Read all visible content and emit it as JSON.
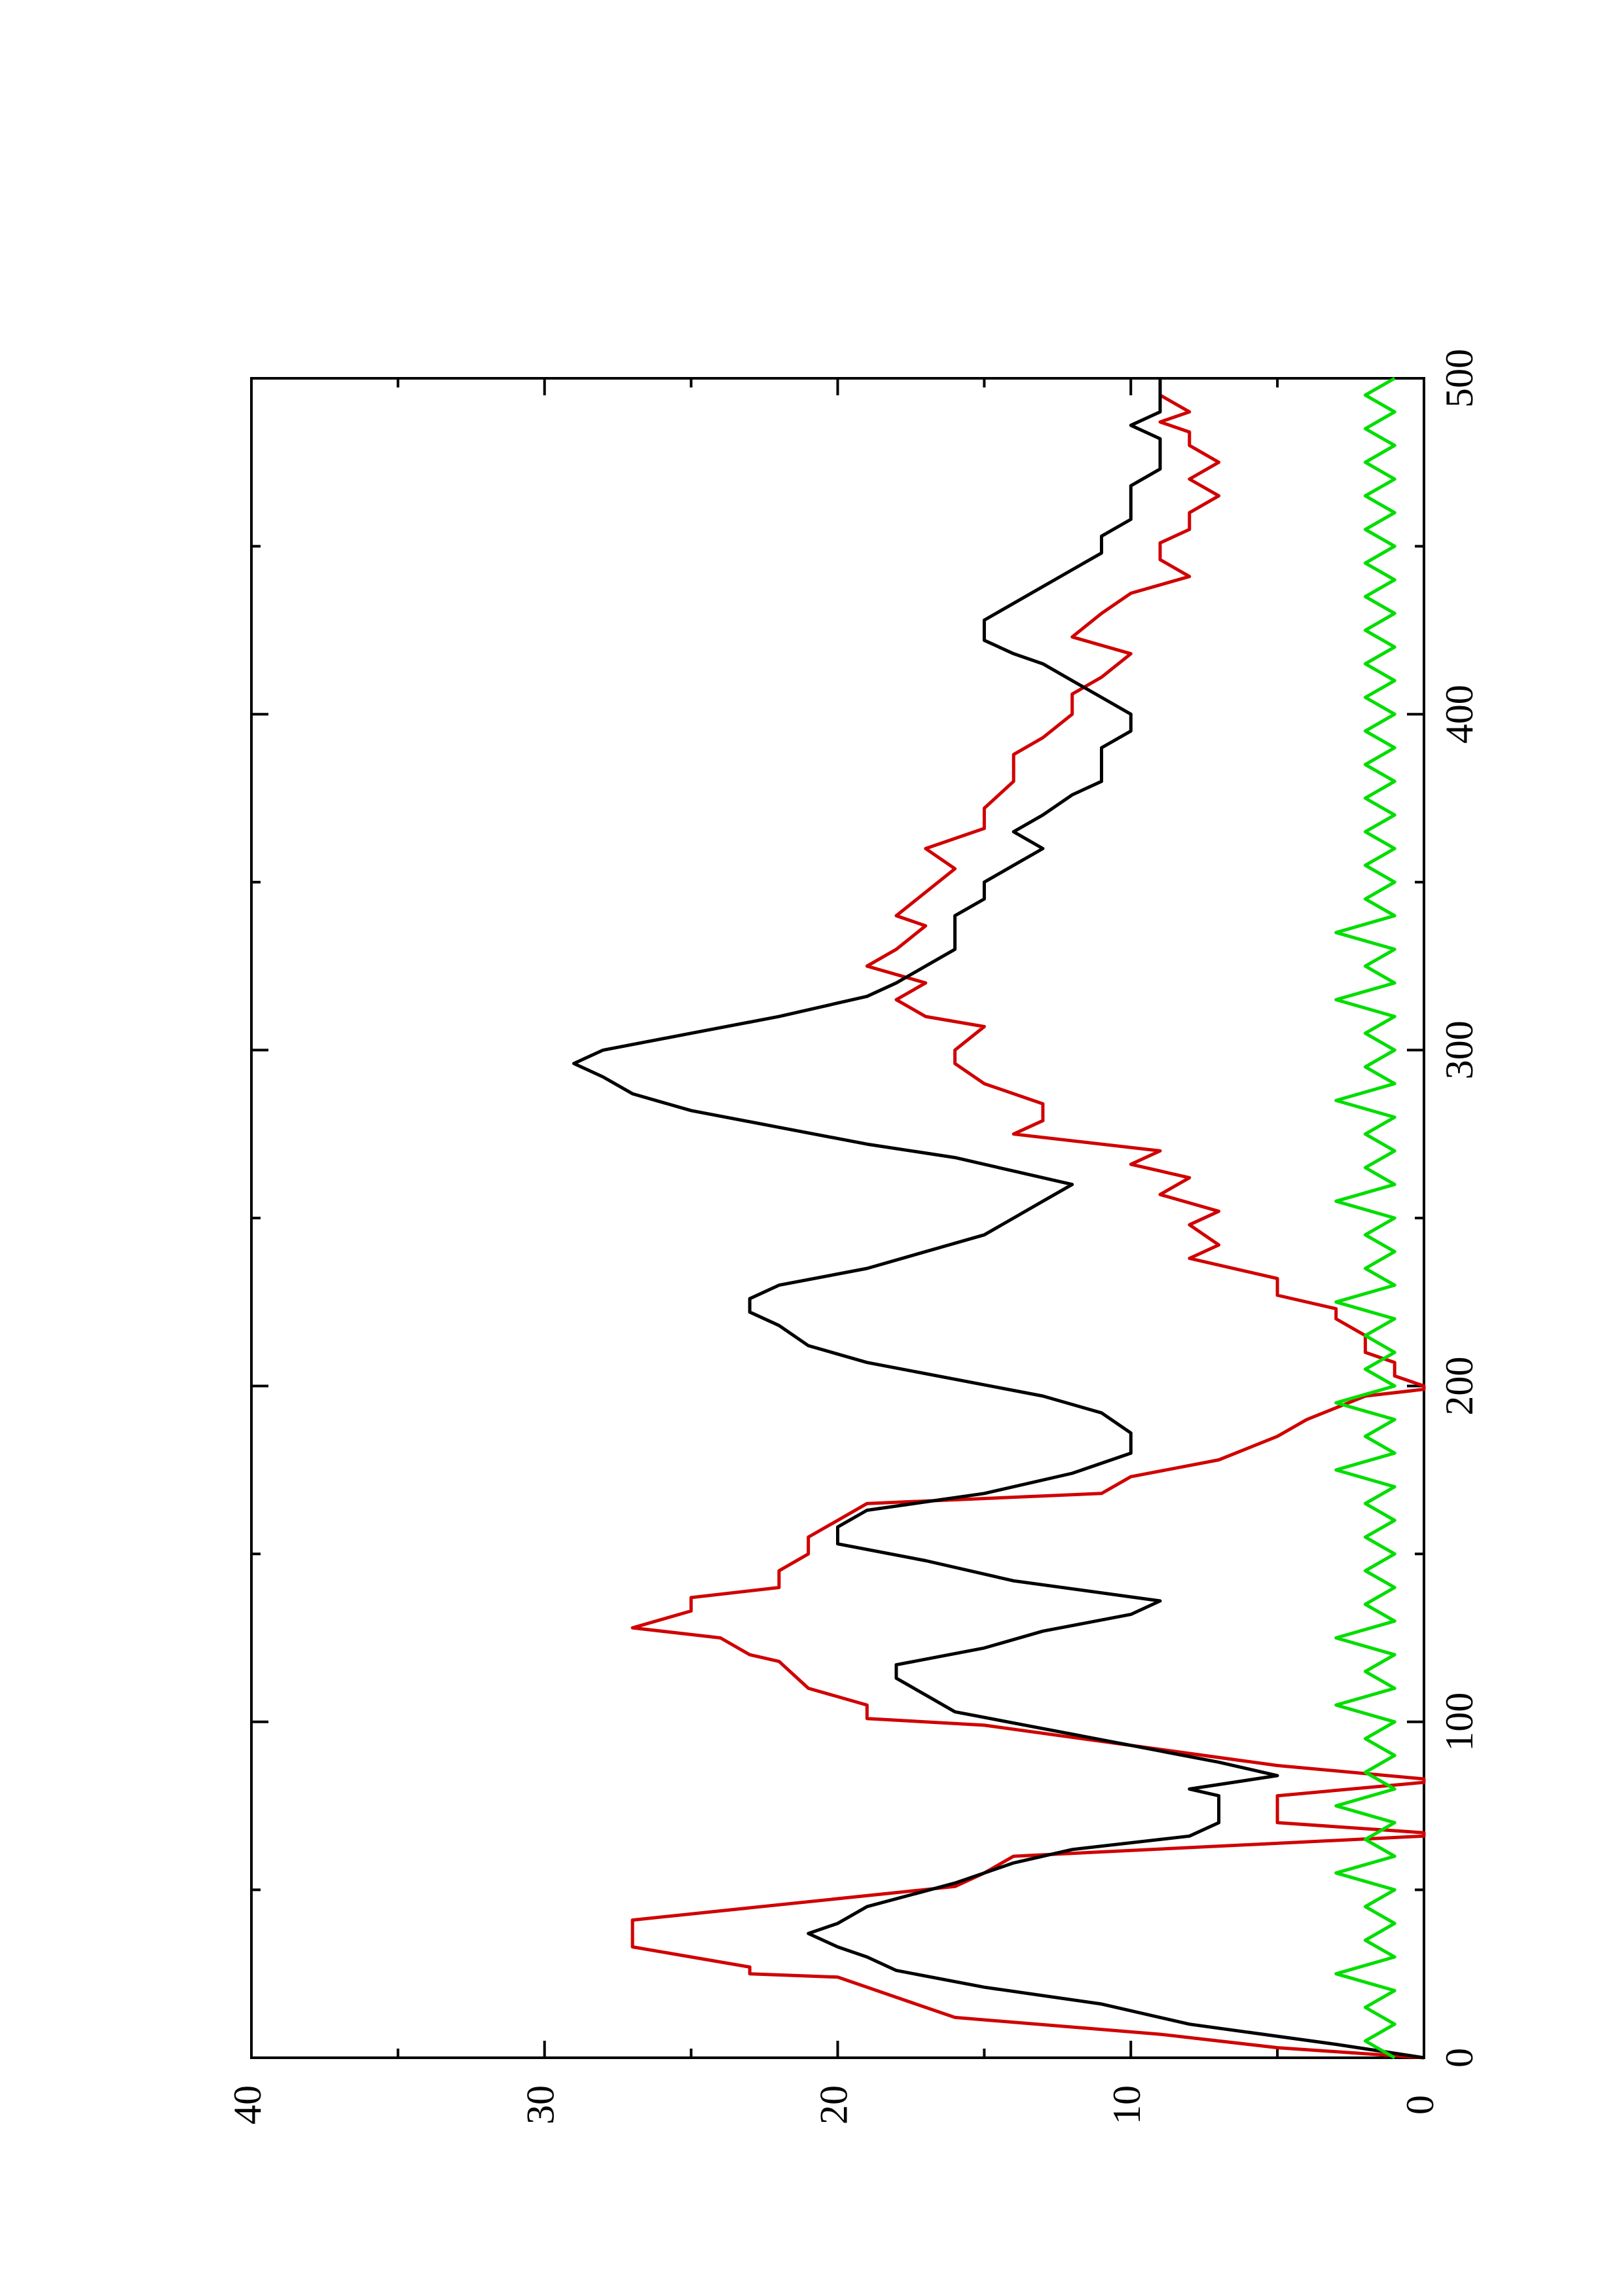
{
  "chart_data": {
    "type": "line",
    "orientation": "rotated-90-ccw",
    "title": "",
    "xlabel": "",
    "ylabel": "",
    "xlim": [
      0,
      500
    ],
    "ylim": [
      0,
      40
    ],
    "x_ticks": [
      0,
      100,
      200,
      300,
      400,
      500
    ],
    "y_ticks": [
      0,
      10,
      20,
      30,
      40
    ],
    "x_minor_ticks": [
      50,
      150,
      250,
      350,
      450
    ],
    "y_minor_ticks": [
      5,
      15,
      25,
      35
    ],
    "grid": false,
    "legend": "none",
    "series": [
      {
        "color": "#d00000",
        "style": "stepped-line",
        "points": [
          [
            0,
            0
          ],
          [
            3,
            5
          ],
          [
            7,
            9
          ],
          [
            12,
            16
          ],
          [
            24,
            20
          ],
          [
            25,
            23
          ],
          [
            27,
            23
          ],
          [
            33,
            27
          ],
          [
            41,
            27
          ],
          [
            51,
            16
          ],
          [
            55,
            15
          ],
          [
            60,
            14
          ],
          [
            66,
            0
          ],
          [
            67,
            0
          ],
          [
            70,
            5
          ],
          [
            78,
            5
          ],
          [
            82,
            0
          ],
          [
            83,
            0
          ],
          [
            87,
            5
          ],
          [
            99,
            15
          ],
          [
            101,
            19
          ],
          [
            105,
            19
          ],
          [
            110,
            21
          ],
          [
            118,
            22
          ],
          [
            120,
            23
          ],
          [
            125,
            24
          ],
          [
            128,
            27
          ],
          [
            133,
            25
          ],
          [
            137,
            25
          ],
          [
            140,
            22
          ],
          [
            145,
            22
          ],
          [
            150,
            21
          ],
          [
            155,
            21
          ],
          [
            160,
            20
          ],
          [
            165,
            19
          ],
          [
            168,
            11
          ],
          [
            173,
            10
          ],
          [
            178,
            7
          ],
          [
            185,
            5
          ],
          [
            190,
            4
          ],
          [
            197,
            2
          ],
          [
            199,
            0
          ],
          [
            200,
            0
          ],
          [
            203,
            1
          ],
          [
            207,
            1
          ],
          [
            210,
            2
          ],
          [
            215,
            2
          ],
          [
            220,
            3
          ],
          [
            223,
            3
          ],
          [
            227,
            5
          ],
          [
            232,
            5
          ],
          [
            238,
            8
          ],
          [
            242,
            7
          ],
          [
            248,
            8
          ],
          [
            252,
            7
          ],
          [
            257,
            9
          ],
          [
            262,
            8
          ],
          [
            266,
            10
          ],
          [
            270,
            9
          ],
          [
            275,
            14
          ],
          [
            279,
            13
          ],
          [
            284,
            13
          ],
          [
            290,
            15
          ],
          [
            296,
            16
          ],
          [
            300,
            16
          ],
          [
            307,
            15
          ],
          [
            310,
            17
          ],
          [
            315,
            18
          ],
          [
            320,
            17
          ],
          [
            325,
            19
          ],
          [
            330,
            18
          ],
          [
            337,
            17
          ],
          [
            340,
            18
          ],
          [
            347,
            17
          ],
          [
            354,
            16
          ],
          [
            360,
            17
          ],
          [
            366,
            15
          ],
          [
            372,
            15
          ],
          [
            380,
            14
          ],
          [
            388,
            14
          ],
          [
            393,
            13
          ],
          [
            400,
            12
          ],
          [
            406,
            12
          ],
          [
            411,
            11
          ],
          [
            418,
            10
          ],
          [
            423,
            12
          ],
          [
            430,
            11
          ],
          [
            436,
            10
          ],
          [
            441,
            8
          ],
          [
            446,
            9
          ],
          [
            451,
            9
          ],
          [
            455,
            8
          ],
          [
            460,
            8
          ],
          [
            465,
            7
          ],
          [
            470,
            8
          ],
          [
            475,
            7
          ],
          [
            480,
            8
          ],
          [
            484,
            8
          ],
          [
            487,
            9
          ],
          [
            490,
            8
          ],
          [
            495,
            9
          ],
          [
            500,
            9
          ]
        ]
      },
      {
        "color": "#000000",
        "style": "line",
        "points": [
          [
            0,
            0
          ],
          [
            4,
            3
          ],
          [
            10,
            8
          ],
          [
            16,
            11
          ],
          [
            21,
            15
          ],
          [
            26,
            18
          ],
          [
            30,
            19
          ],
          [
            33,
            20
          ],
          [
            37,
            21
          ],
          [
            40,
            20
          ],
          [
            45,
            19
          ],
          [
            52,
            16
          ],
          [
            58,
            14
          ],
          [
            62,
            12
          ],
          [
            66,
            8
          ],
          [
            70,
            7
          ],
          [
            74,
            7
          ],
          [
            78,
            7
          ],
          [
            80,
            8
          ],
          [
            84,
            5
          ],
          [
            88,
            7
          ],
          [
            93,
            10
          ],
          [
            98,
            13
          ],
          [
            103,
            16
          ],
          [
            108,
            17
          ],
          [
            113,
            18
          ],
          [
            117,
            18
          ],
          [
            122,
            15
          ],
          [
            127,
            13
          ],
          [
            132,
            10
          ],
          [
            136,
            9
          ],
          [
            142,
            14
          ],
          [
            148,
            17
          ],
          [
            153,
            20
          ],
          [
            158,
            20
          ],
          [
            163,
            19
          ],
          [
            168,
            15
          ],
          [
            174,
            12
          ],
          [
            180,
            10
          ],
          [
            186,
            10
          ],
          [
            192,
            11
          ],
          [
            197,
            13
          ],
          [
            202,
            16
          ],
          [
            207,
            19
          ],
          [
            212,
            21
          ],
          [
            218,
            22
          ],
          [
            222,
            23
          ],
          [
            226,
            23
          ],
          [
            230,
            22
          ],
          [
            235,
            19
          ],
          [
            240,
            17
          ],
          [
            245,
            15
          ],
          [
            250,
            14
          ],
          [
            255,
            13
          ],
          [
            260,
            12
          ],
          [
            264,
            14
          ],
          [
            268,
            16
          ],
          [
            272,
            19
          ],
          [
            277,
            22
          ],
          [
            282,
            25
          ],
          [
            287,
            27
          ],
          [
            292,
            28
          ],
          [
            296,
            29
          ],
          [
            300,
            28
          ],
          [
            305,
            25
          ],
          [
            310,
            22
          ],
          [
            316,
            19
          ],
          [
            320,
            18
          ],
          [
            325,
            17
          ],
          [
            330,
            16
          ],
          [
            335,
            16
          ],
          [
            340,
            16
          ],
          [
            345,
            15
          ],
          [
            350,
            15
          ],
          [
            355,
            14
          ],
          [
            360,
            13
          ],
          [
            365,
            14
          ],
          [
            370,
            13
          ],
          [
            376,
            12
          ],
          [
            380,
            11
          ],
          [
            385,
            11
          ],
          [
            390,
            11
          ],
          [
            395,
            10
          ],
          [
            400,
            10
          ],
          [
            405,
            11
          ],
          [
            410,
            12
          ],
          [
            415,
            13
          ],
          [
            418,
            14
          ],
          [
            422,
            15
          ],
          [
            428,
            15
          ],
          [
            433,
            14
          ],
          [
            438,
            13
          ],
          [
            443,
            12
          ],
          [
            448,
            11
          ],
          [
            453,
            11
          ],
          [
            458,
            10
          ],
          [
            463,
            10
          ],
          [
            468,
            10
          ],
          [
            473,
            9
          ],
          [
            478,
            9
          ],
          [
            482,
            9
          ],
          [
            486,
            10
          ],
          [
            490,
            9
          ],
          [
            495,
            9
          ],
          [
            500,
            9
          ]
        ]
      },
      {
        "color": "#00dd00",
        "style": "line",
        "points": [
          [
            0,
            1
          ],
          [
            5,
            2
          ],
          [
            10,
            1
          ],
          [
            15,
            2
          ],
          [
            20,
            1
          ],
          [
            25,
            3
          ],
          [
            30,
            1
          ],
          [
            35,
            2
          ],
          [
            40,
            1
          ],
          [
            45,
            2
          ],
          [
            50,
            1
          ],
          [
            55,
            3
          ],
          [
            60,
            1
          ],
          [
            65,
            2
          ],
          [
            70,
            1
          ],
          [
            75,
            3
          ],
          [
            80,
            1
          ],
          [
            85,
            2
          ],
          [
            90,
            1
          ],
          [
            95,
            2
          ],
          [
            100,
            1
          ],
          [
            105,
            3
          ],
          [
            110,
            1
          ],
          [
            115,
            2
          ],
          [
            120,
            1
          ],
          [
            125,
            3
          ],
          [
            130,
            1
          ],
          [
            135,
            2
          ],
          [
            140,
            1
          ],
          [
            145,
            2
          ],
          [
            150,
            1
          ],
          [
            155,
            2
          ],
          [
            160,
            1
          ],
          [
            165,
            2
          ],
          [
            170,
            1
          ],
          [
            175,
            3
          ],
          [
            180,
            1
          ],
          [
            185,
            2
          ],
          [
            190,
            1
          ],
          [
            195,
            3
          ],
          [
            200,
            1
          ],
          [
            205,
            2
          ],
          [
            210,
            1
          ],
          [
            215,
            2
          ],
          [
            220,
            1
          ],
          [
            225,
            3
          ],
          [
            230,
            1
          ],
          [
            235,
            2
          ],
          [
            240,
            1
          ],
          [
            245,
            2
          ],
          [
            250,
            1
          ],
          [
            255,
            3
          ],
          [
            260,
            1
          ],
          [
            265,
            2
          ],
          [
            270,
            1
          ],
          [
            275,
            2
          ],
          [
            280,
            1
          ],
          [
            285,
            3
          ],
          [
            290,
            1
          ],
          [
            295,
            2
          ],
          [
            300,
            1
          ],
          [
            305,
            2
          ],
          [
            310,
            1
          ],
          [
            315,
            3
          ],
          [
            320,
            1
          ],
          [
            325,
            2
          ],
          [
            330,
            1
          ],
          [
            335,
            3
          ],
          [
            340,
            1
          ],
          [
            345,
            2
          ],
          [
            350,
            1
          ],
          [
            355,
            2
          ],
          [
            360,
            1
          ],
          [
            365,
            2
          ],
          [
            370,
            1
          ],
          [
            375,
            2
          ],
          [
            380,
            1
          ],
          [
            385,
            2
          ],
          [
            390,
            1
          ],
          [
            395,
            2
          ],
          [
            400,
            1
          ],
          [
            405,
            2
          ],
          [
            410,
            1
          ],
          [
            415,
            2
          ],
          [
            420,
            1
          ],
          [
            425,
            2
          ],
          [
            430,
            1
          ],
          [
            435,
            2
          ],
          [
            440,
            1
          ],
          [
            445,
            2
          ],
          [
            450,
            1
          ],
          [
            455,
            2
          ],
          [
            460,
            1
          ],
          [
            465,
            2
          ],
          [
            470,
            1
          ],
          [
            475,
            2
          ],
          [
            480,
            1
          ],
          [
            485,
            2
          ],
          [
            490,
            1
          ],
          [
            495,
            2
          ],
          [
            500,
            1
          ]
        ]
      }
    ]
  }
}
